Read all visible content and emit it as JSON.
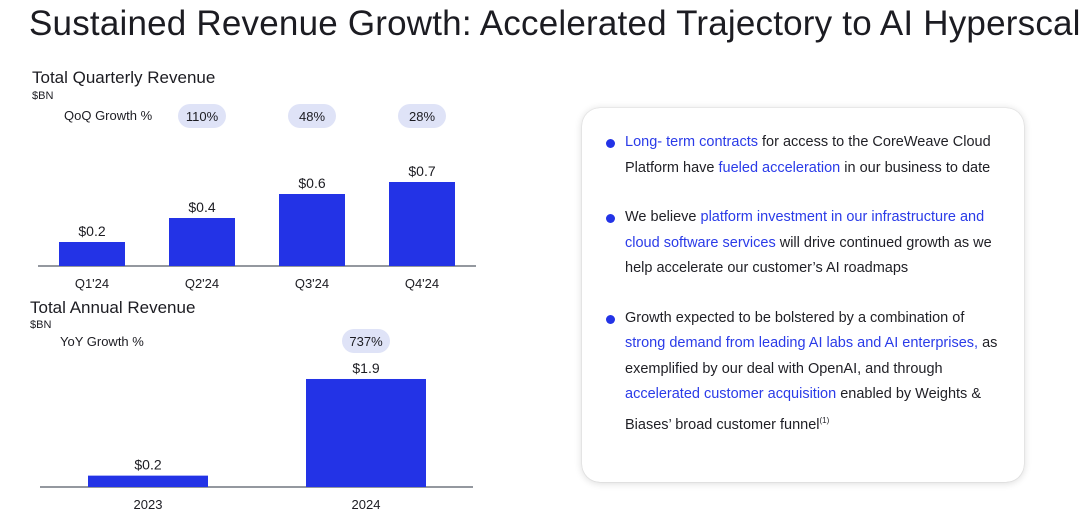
{
  "page": {
    "title": "Sustained Revenue Growth: Accelerated Trajectory to AI Hyperscale"
  },
  "colors": {
    "bar": "#2333e6",
    "highlight": "#2a3be8",
    "pill": "#dfe3f7"
  },
  "chart_data": [
    {
      "type": "bar",
      "title": "Total Quarterly Revenue",
      "unit": "$BN",
      "categories": [
        "Q1'24",
        "Q2'24",
        "Q3'24",
        "Q4'24"
      ],
      "values": [
        0.2,
        0.4,
        0.6,
        0.7
      ],
      "value_labels": [
        "$0.2",
        "$0.4",
        "$0.6",
        "$0.7"
      ],
      "growth_label": "QoQ Growth %",
      "growth": [
        "110%",
        "48%",
        "28%"
      ],
      "ylim": [
        0,
        0.8
      ]
    },
    {
      "type": "bar",
      "title": "Total Annual Revenue",
      "unit": "$BN",
      "categories": [
        "2023",
        "2024"
      ],
      "values": [
        0.2,
        1.9
      ],
      "value_labels": [
        "$0.2",
        "$1.9"
      ],
      "growth_label": "YoY Growth %",
      "growth": [
        "737%"
      ],
      "ylim": [
        0,
        2.0
      ]
    }
  ],
  "panel": {
    "bullets": [
      {
        "segments": [
          {
            "text": "Long- term contracts",
            "hl": true
          },
          {
            "text": " for access to the CoreWeave Cloud Platform have ",
            "hl": false
          },
          {
            "text": "fueled acceleration",
            "hl": true
          },
          {
            "text": " in our business to date",
            "hl": false
          }
        ]
      },
      {
        "segments": [
          {
            "text": "We believe ",
            "hl": false
          },
          {
            "text": "platform investment in our infrastructure and cloud software services",
            "hl": true
          },
          {
            "text": " will drive continued growth as we help accelerate our customer’s AI roadmaps",
            "hl": false
          }
        ]
      },
      {
        "segments": [
          {
            "text": "Growth expected to be bolstered by a combination of ",
            "hl": false
          },
          {
            "text": "strong demand from leading AI labs and AI enterprises,",
            "hl": true
          },
          {
            "text": " as exemplified by our deal with OpenAI, and through ",
            "hl": false
          },
          {
            "text": "accelerated customer acquisition",
            "hl": true
          },
          {
            "text": " enabled by Weights & Biases’ broad customer funnel",
            "hl": false
          }
        ],
        "footnote": "(1)"
      }
    ]
  }
}
